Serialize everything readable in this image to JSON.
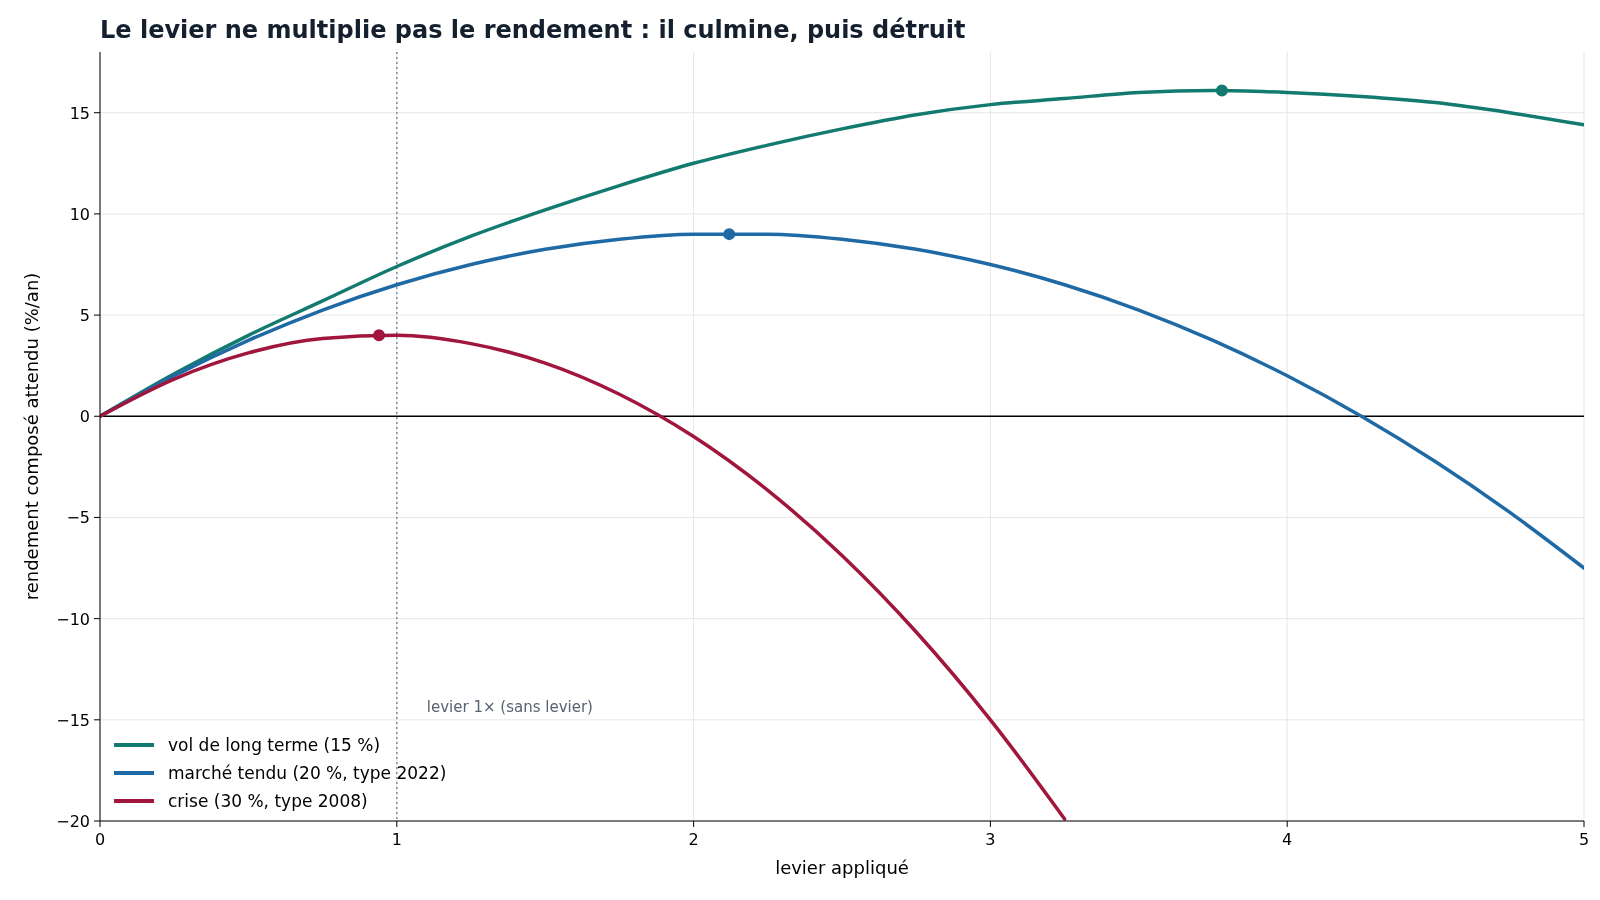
{
  "chart_data": {
    "type": "line",
    "title": "Le levier ne multiplie pas le rendement : il culmine, puis détruit",
    "xlabel": "levier appliqué",
    "ylabel": "rendement composé attendu (%/an)",
    "xlim": [
      0,
      5
    ],
    "xticks": [
      0,
      1,
      2,
      3,
      4,
      5
    ],
    "ylim": [
      -20,
      18
    ],
    "yticks": [
      -20,
      -15,
      -10,
      -5,
      0,
      5,
      10,
      15
    ],
    "grid": true,
    "legend": "bottom left",
    "line_style": "solid",
    "marker": "none",
    "series": [
      {
        "name": "vol de long terme (15 %)",
        "color": "#137a6f",
        "x": [
          0,
          0.25,
          0.5,
          0.75,
          1,
          1.25,
          1.5,
          1.75,
          2,
          2.25,
          2.5,
          2.75,
          3,
          3.25,
          3.5,
          3.75,
          4,
          4.25,
          4.5,
          4.75,
          5
        ],
        "values": [
          0,
          2.1,
          4.0,
          5.7,
          7.4,
          8.9,
          10.2,
          11.4,
          12.5,
          13.4,
          14.2,
          14.9,
          15.4,
          15.7,
          16.0,
          16.1,
          16.0,
          15.8,
          15.5,
          15.0,
          14.4
        ]
      },
      {
        "name": "marché tendu (20 %, type 2022)",
        "color": "#1f6aa5",
        "x": [
          0,
          0.25,
          0.5,
          0.75,
          1,
          1.25,
          1.5,
          1.75,
          2,
          2.25,
          2.5,
          2.75,
          3,
          3.25,
          3.5,
          3.75,
          4,
          4.25,
          4.5,
          4.75,
          5
        ],
        "values": [
          0,
          2.0,
          3.75,
          5.25,
          6.5,
          7.5,
          8.25,
          8.75,
          9.0,
          9.0,
          8.75,
          8.25,
          7.5,
          6.5,
          5.25,
          3.75,
          2.0,
          0,
          -2.25,
          -4.75,
          -7.5
        ]
      },
      {
        "name": "crise (30 %, type 2008)",
        "color": "#a0163c",
        "x": [
          0,
          0.25,
          0.5,
          0.75,
          1,
          1.25,
          1.5,
          1.75,
          2,
          2.25,
          2.5,
          2.75,
          3,
          3.25
        ],
        "values": [
          0,
          1.84,
          3.13,
          3.84,
          4.0,
          3.59,
          2.63,
          1.09,
          -1.0,
          -3.66,
          -6.88,
          -10.66,
          -15.0,
          -19.9
        ]
      },
      {
        "type": "scatter",
        "marker": "circle",
        "x": [
          3.78,
          2.12,
          0.94
        ],
        "values": [
          16.1,
          9.0,
          4.0
        ],
        "colors": [
          "#137a6f",
          "#1f6aa5",
          "#a0163c"
        ]
      }
    ],
    "ref_lines": [
      {
        "axis": "x",
        "value": 1,
        "label": "levier 1× (sans levier)",
        "color": "#7a8fa6",
        "line_style": "dotted"
      },
      {
        "axis": "y",
        "value": 0,
        "color": "#000000",
        "line_style": "solid"
      }
    ]
  }
}
